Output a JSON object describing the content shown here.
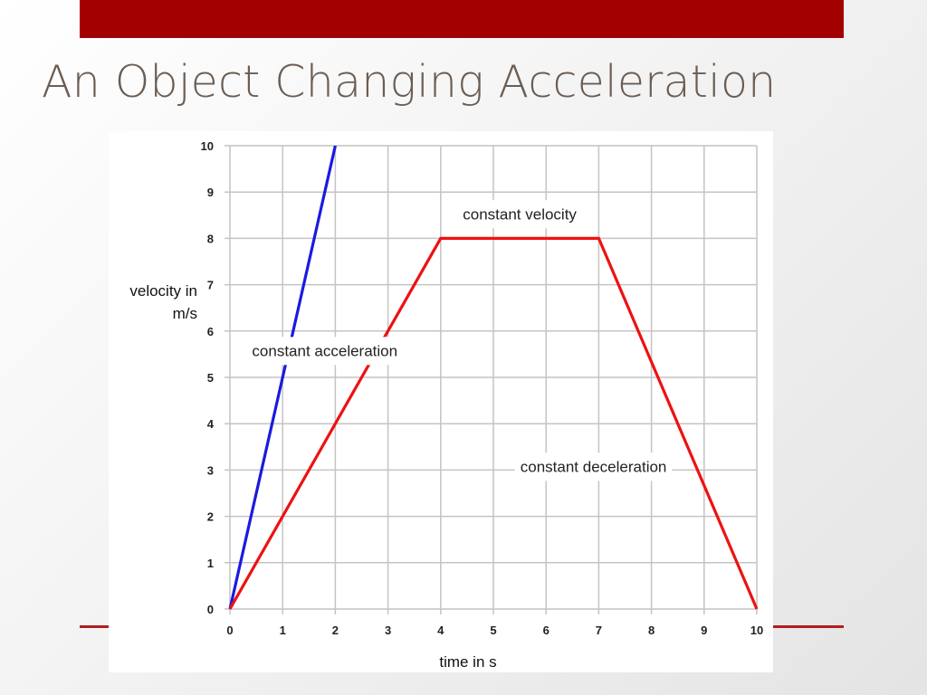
{
  "slide": {
    "title": "An Object Changing Acceleration",
    "colors": {
      "top_bar": "#a30000",
      "title": "#6b5d53",
      "accent_rule": "#b21e1e"
    }
  },
  "chart_data": {
    "type": "line",
    "x": [
      0,
      1,
      2,
      3,
      4,
      5,
      6,
      7,
      8,
      9,
      10
    ],
    "xlabel": "time in s",
    "ylabel_lines": [
      "velocity in",
      "m/s"
    ],
    "xlim": [
      0,
      10
    ],
    "ylim": [
      0,
      10
    ],
    "x_ticks": [
      0,
      1,
      2,
      3,
      4,
      5,
      6,
      7,
      8,
      9,
      10
    ],
    "y_ticks": [
      0,
      1,
      2,
      3,
      4,
      5,
      6,
      7,
      8,
      9,
      10
    ],
    "grid": true,
    "legend": "none",
    "series": [
      {
        "color": "#1a1ae0",
        "points": [
          [
            0,
            0
          ],
          [
            2,
            10
          ]
        ]
      },
      {
        "color": "#ee1111",
        "points": [
          [
            0,
            0
          ],
          [
            4,
            8
          ],
          [
            7,
            8
          ],
          [
            10,
            0
          ]
        ]
      }
    ],
    "annotations": [
      {
        "text": "constant velocity",
        "x": 5.5,
        "y": 8.5
      },
      {
        "text": "constant acceleration",
        "x": 1.8,
        "y": 5.55
      },
      {
        "text": "constant deceleration",
        "x": 6.9,
        "y": 3.05
      }
    ]
  }
}
